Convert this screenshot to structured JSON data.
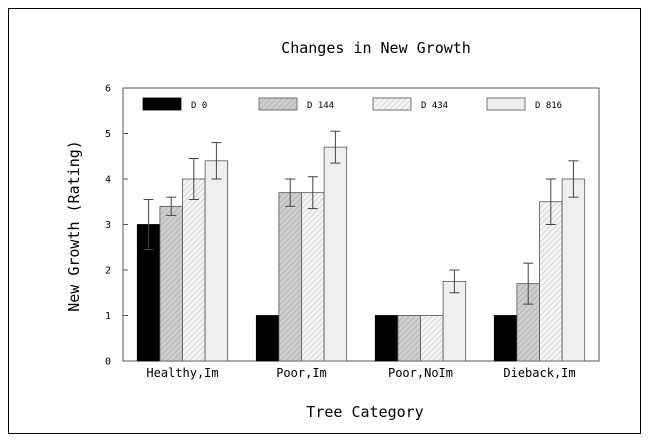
{
  "chart_data": {
    "type": "bar",
    "title": "Changes in New Growth",
    "xlabel": "Tree Category",
    "ylabel": "New Growth (Rating)",
    "ylim": [
      0,
      6
    ],
    "yticks": [
      "0",
      "1",
      "2",
      "3",
      "4",
      "5",
      "6"
    ],
    "categories": [
      "Healthy,Im",
      "Poor,Im",
      "Poor,NoIm",
      "Dieback,Im"
    ],
    "legend_position": "top",
    "grid": false,
    "series": [
      {
        "name": "D 0",
        "pattern": "solid-black",
        "values": [
          3.0,
          1.0,
          1.0,
          1.0
        ],
        "errors": [
          0.55,
          null,
          null,
          null
        ]
      },
      {
        "name": "D 144",
        "pattern": "diagonal-dark",
        "values": [
          3.4,
          3.7,
          1.0,
          1.7
        ],
        "errors": [
          0.2,
          0.3,
          null,
          0.45
        ]
      },
      {
        "name": "D 434",
        "pattern": "diagonal-light",
        "values": [
          4.0,
          3.7,
          1.0,
          3.5
        ],
        "errors": [
          0.45,
          0.35,
          null,
          0.5
        ]
      },
      {
        "name": "D 816",
        "pattern": "light-gray",
        "values": [
          4.4,
          4.7,
          1.75,
          4.0
        ],
        "errors": [
          0.4,
          0.35,
          0.25,
          0.4
        ]
      }
    ]
  }
}
